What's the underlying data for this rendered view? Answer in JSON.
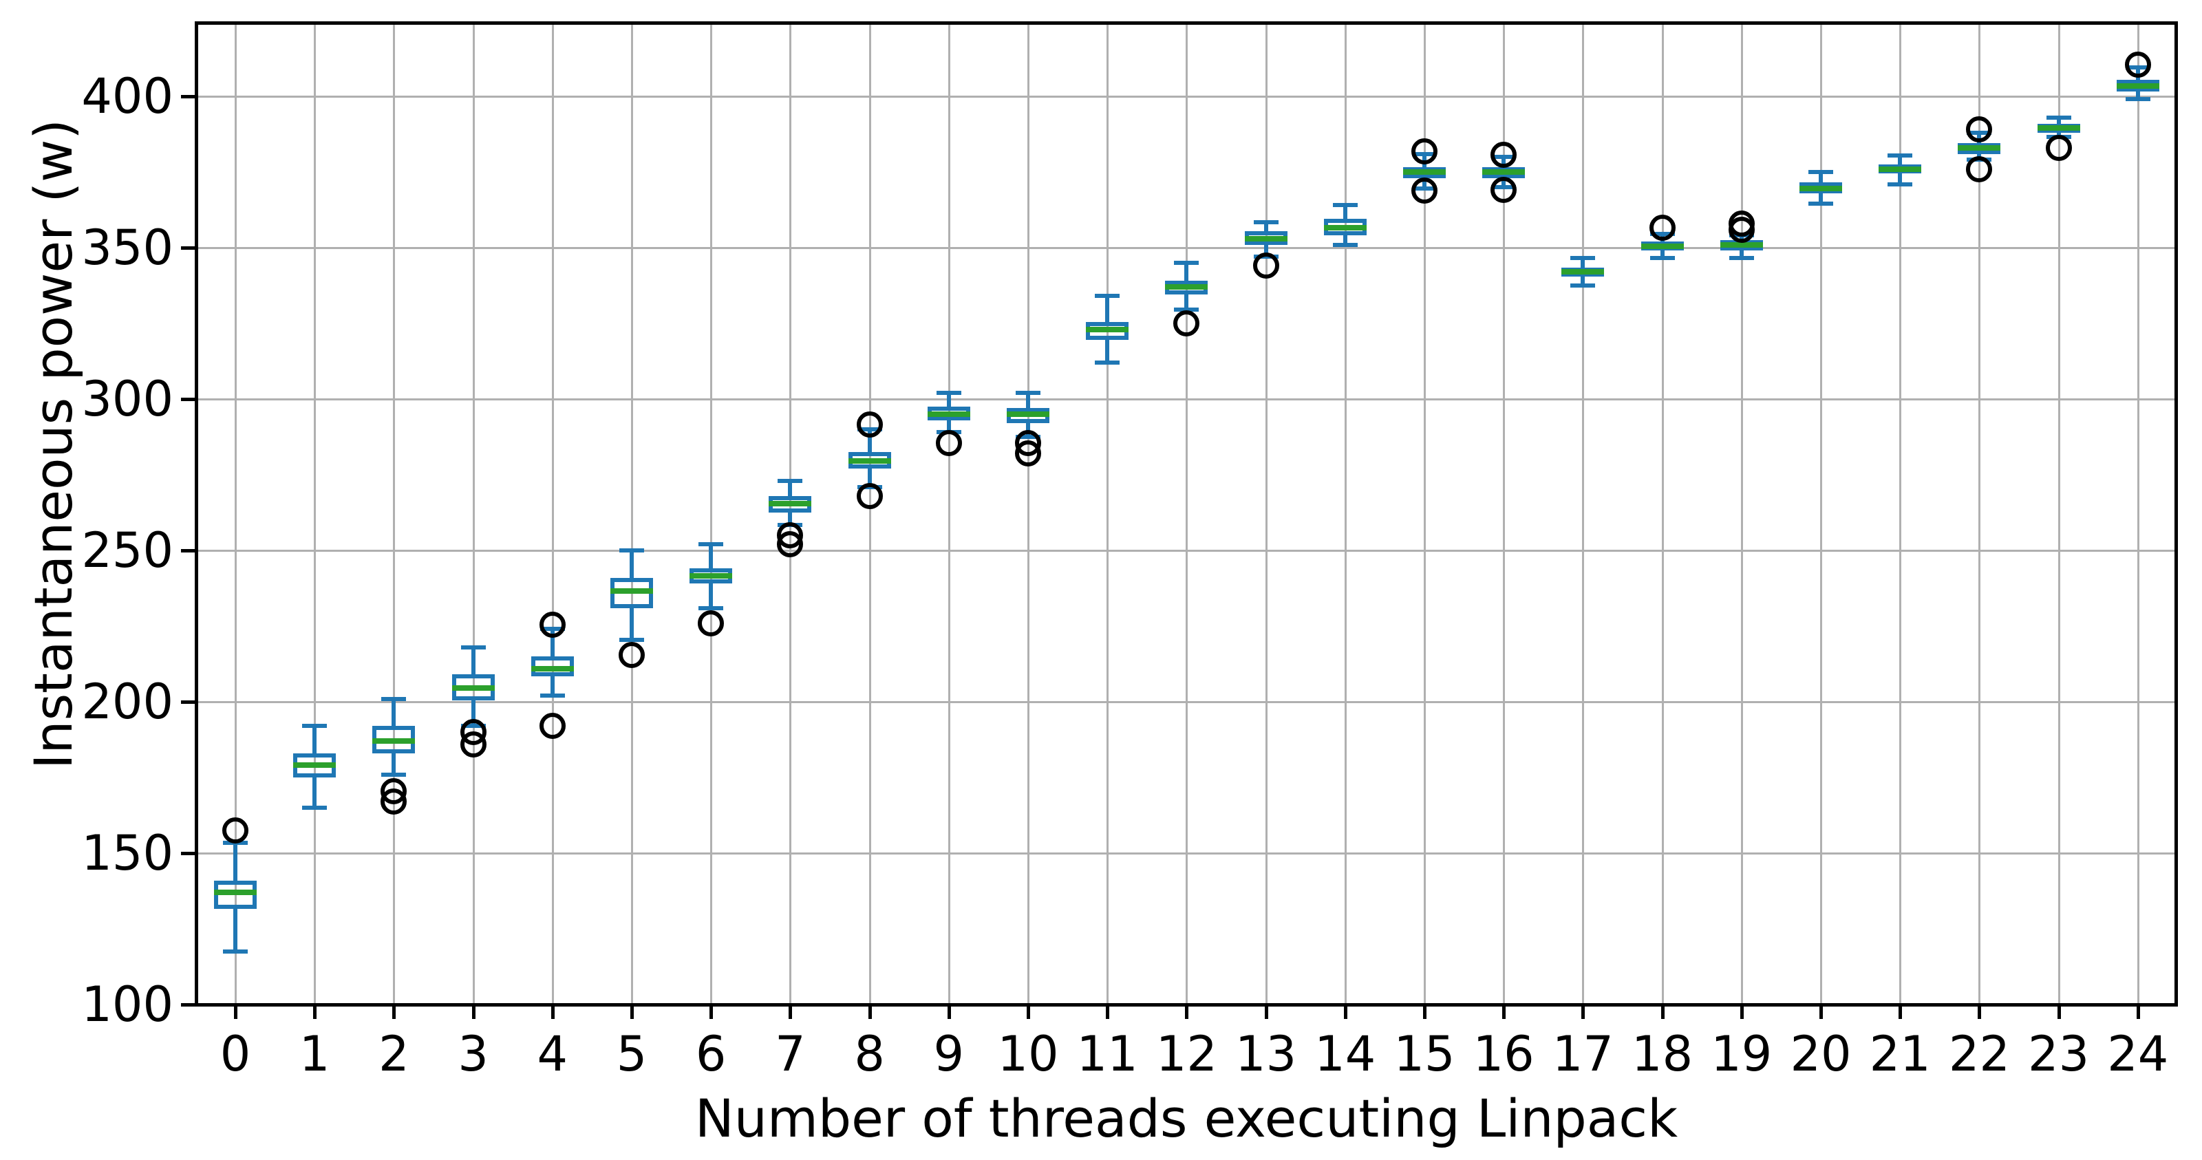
{
  "axes": {
    "xlabel": "Number of threads executing Linpack",
    "ylabel": "Instantaneous power (w)"
  },
  "chart_data": {
    "type": "boxplot",
    "title": "",
    "xlabel": "Number of threads executing Linpack",
    "ylabel": "Instantaneous power (w)",
    "grid": true,
    "legend": "none",
    "ylim": [
      100,
      424
    ],
    "y_ticks": [
      100,
      150,
      200,
      250,
      300,
      350,
      400
    ],
    "y_tick_labels": [
      "100",
      "150",
      "200",
      "250",
      "300",
      "350",
      "400"
    ],
    "x_tick_labels": [
      "0",
      "1",
      "2",
      "3",
      "4",
      "5",
      "6",
      "7",
      "8",
      "9",
      "10",
      "11",
      "12",
      "13",
      "14",
      "15",
      "16",
      "17",
      "18",
      "19",
      "20",
      "21",
      "22",
      "23",
      "24"
    ],
    "colors": {
      "box": "#1f77b4",
      "median": "#2ca02c",
      "flier_edge": "#000000",
      "grid": "#b0b0b0",
      "spine": "#000000",
      "background": "#ffffff"
    },
    "boxes": [
      {
        "x": 0,
        "whislo": 117.5,
        "q1": 131.5,
        "med": 137.0,
        "q3": 141.0,
        "whishi": 153.5,
        "fliers": [
          157.5
        ]
      },
      {
        "x": 1,
        "whislo": 165.0,
        "q1": 175.0,
        "med": 179.0,
        "q3": 183.0,
        "whishi": 192.0,
        "fliers": []
      },
      {
        "x": 2,
        "whislo": 176.0,
        "q1": 183.0,
        "med": 187.0,
        "q3": 192.0,
        "whishi": 201.0,
        "fliers": [
          170.5,
          167.0
        ]
      },
      {
        "x": 3,
        "whislo": 192.0,
        "q1": 200.5,
        "med": 204.5,
        "q3": 209.0,
        "whishi": 218.0,
        "fliers": [
          190.0,
          186.0
        ]
      },
      {
        "x": 4,
        "whislo": 202.0,
        "q1": 208.5,
        "med": 211.0,
        "q3": 215.0,
        "whishi": 224.0,
        "fliers": [
          225.5,
          192.0
        ]
      },
      {
        "x": 5,
        "whislo": 220.5,
        "q1": 231.0,
        "med": 236.5,
        "q3": 241.0,
        "whishi": 250.0,
        "fliers": [
          215.5
        ]
      },
      {
        "x": 6,
        "whislo": 231.0,
        "q1": 239.0,
        "med": 241.5,
        "q3": 244.0,
        "whishi": 252.0,
        "fliers": [
          226.0
        ]
      },
      {
        "x": 7,
        "whislo": 258.5,
        "q1": 262.5,
        "med": 265.5,
        "q3": 268.0,
        "whishi": 273.0,
        "fliers": [
          255.0,
          252.0
        ]
      },
      {
        "x": 8,
        "whislo": 271.0,
        "q1": 277.0,
        "med": 279.5,
        "q3": 282.5,
        "whishi": 290.0,
        "fliers": [
          291.5,
          268.0
        ]
      },
      {
        "x": 9,
        "whislo": 289.0,
        "q1": 293.0,
        "med": 295.0,
        "q3": 297.5,
        "whishi": 302.0,
        "fliers": [
          285.5
        ]
      },
      {
        "x": 10,
        "whislo": 287.5,
        "q1": 292.0,
        "med": 295.0,
        "q3": 297.0,
        "whishi": 302.0,
        "fliers": [
          285.5,
          282.0
        ]
      },
      {
        "x": 11,
        "whislo": 312.0,
        "q1": 319.5,
        "med": 323.0,
        "q3": 325.5,
        "whishi": 334.0,
        "fliers": []
      },
      {
        "x": 12,
        "whislo": 329.5,
        "q1": 334.5,
        "med": 337.0,
        "q3": 339.0,
        "whishi": 345.0,
        "fliers": [
          325.0
        ]
      },
      {
        "x": 13,
        "whislo": 347.0,
        "q1": 351.0,
        "med": 353.0,
        "q3": 355.5,
        "whishi": 358.5,
        "fliers": [
          344.0
        ]
      },
      {
        "x": 14,
        "whislo": 351.0,
        "q1": 354.0,
        "med": 356.5,
        "q3": 359.5,
        "whishi": 364.0,
        "fliers": []
      },
      {
        "x": 15,
        "whislo": 369.5,
        "q1": 373.0,
        "med": 375.0,
        "q3": 376.5,
        "whishi": 381.0,
        "fliers": [
          381.8,
          368.8
        ]
      },
      {
        "x": 16,
        "whislo": 370.0,
        "q1": 373.0,
        "med": 375.0,
        "q3": 376.5,
        "whishi": 380.0,
        "fliers": [
          380.7,
          369.2
        ]
      },
      {
        "x": 17,
        "whislo": 337.5,
        "q1": 340.5,
        "med": 342.0,
        "q3": 343.5,
        "whishi": 346.5,
        "fliers": []
      },
      {
        "x": 18,
        "whislo": 346.5,
        "q1": 349.0,
        "med": 350.5,
        "q3": 352.0,
        "whishi": 354.5,
        "fliers": [
          356.5
        ]
      },
      {
        "x": 19,
        "whislo": 346.5,
        "q1": 349.0,
        "med": 351.0,
        "q3": 352.5,
        "whishi": 354.0,
        "fliers": [
          358.0,
          356.0
        ]
      },
      {
        "x": 20,
        "whislo": 364.5,
        "q1": 368.0,
        "med": 369.5,
        "q3": 371.5,
        "whishi": 375.0,
        "fliers": []
      },
      {
        "x": 21,
        "whislo": 371.0,
        "q1": 374.5,
        "med": 376.0,
        "q3": 377.5,
        "whishi": 380.5,
        "fliers": []
      },
      {
        "x": 22,
        "whislo": 379.0,
        "q1": 381.0,
        "med": 383.0,
        "q3": 384.5,
        "whishi": 388.0,
        "fliers": [
          389.0,
          376.0
        ]
      },
      {
        "x": 23,
        "whislo": 386.5,
        "q1": 388.0,
        "med": 389.5,
        "q3": 391.0,
        "whishi": 393.0,
        "fliers": [
          383.0
        ]
      },
      {
        "x": 24,
        "whislo": 399.0,
        "q1": 401.5,
        "med": 403.5,
        "q3": 405.5,
        "whishi": 409.5,
        "fliers": [
          410.5
        ]
      }
    ]
  }
}
